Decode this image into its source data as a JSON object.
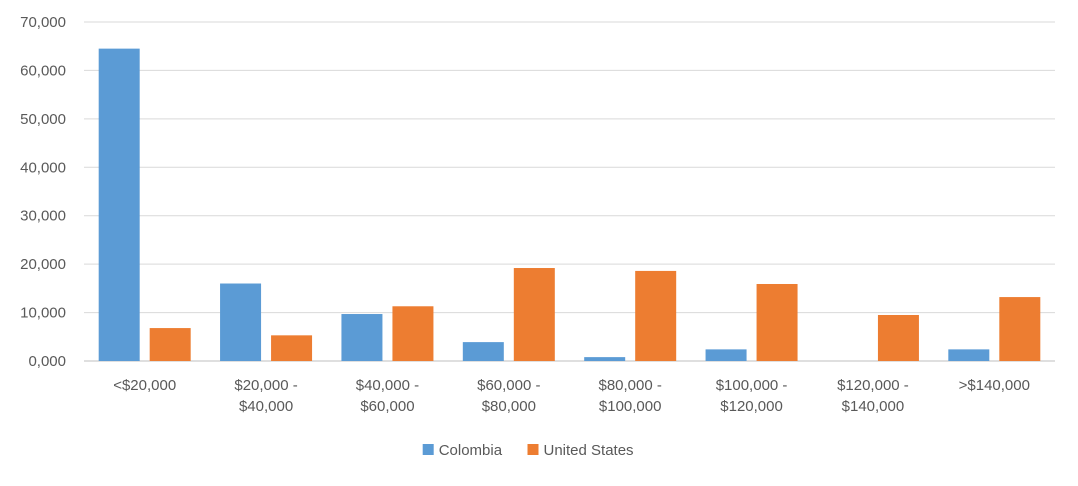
{
  "chart_data": {
    "type": "bar",
    "categories": [
      [
        "<$20,000"
      ],
      [
        "$20,000 -",
        "$40,000"
      ],
      [
        "$40,000 -",
        "$60,000"
      ],
      [
        "$60,000 -",
        "$80,000"
      ],
      [
        "$80,000 -",
        "$100,000"
      ],
      [
        "$100,000 -",
        "$120,000"
      ],
      [
        "$120,000 -",
        "$140,000"
      ],
      [
        ">$140,000"
      ]
    ],
    "series": [
      {
        "name": "Colombia",
        "color": "#5B9BD5",
        "values": [
          64500,
          16000,
          9700,
          3900,
          800,
          2400,
          0,
          2400
        ]
      },
      {
        "name": "United States",
        "color": "#ED7D31",
        "values": [
          6800,
          5300,
          11300,
          19200,
          18600,
          15900,
          9500,
          13200
        ]
      }
    ],
    "ylim": [
      0,
      70000
    ],
    "y_ticks": [
      "0,000",
      "10,000",
      "20,000",
      "30,000",
      "40,000",
      "50,000",
      "60,000",
      "70,000"
    ],
    "grid": true,
    "legend_position": "bottom"
  }
}
